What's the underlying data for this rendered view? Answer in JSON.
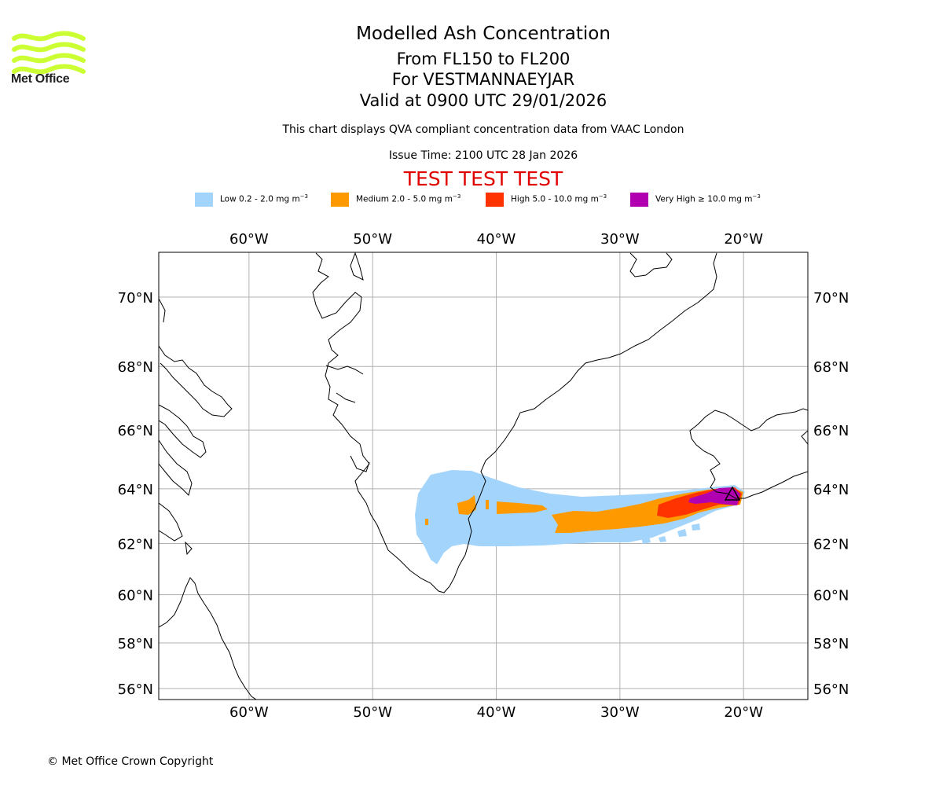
{
  "logo": {
    "text": "Met Office",
    "color": "#ccff33",
    "icon": "met-office-waves-logo"
  },
  "header": {
    "title": "Modelled Ash Concentration",
    "levels": "From FL150 to FL200",
    "volcano": "For VESTMANNAEYJAR",
    "valid": "Valid at 0900 UTC 29/01/2026",
    "compliance_note": "This chart displays QVA compliant concentration data from VAAC London",
    "issue_time": "Issue Time: 2100 UTC 28 Jan 2026",
    "test_banner": "TEST TEST TEST",
    "test_banner_color": "#e00000"
  },
  "legend": [
    {
      "label": "Low 0.2 - 2.0 mg m",
      "color": "#a3d4fb"
    },
    {
      "label": "Medium 2.0 - 5.0 mg m",
      "color": "#ff9900"
    },
    {
      "label": "High 5.0 - 10.0 mg m",
      "color": "#ff3300"
    },
    {
      "label": "Very High ≥ 10.0 mg m",
      "color": "#b000b0"
    }
  ],
  "legend_unit_exponent": "−3",
  "map": {
    "longitude_labels": [
      "60°W",
      "50°W",
      "40°W",
      "30°W",
      "20°W"
    ],
    "longitudes": [
      -60,
      -50,
      -40,
      -30,
      -20
    ],
    "latitude_labels": [
      "70°N",
      "68°N",
      "66°N",
      "64°N",
      "62°N",
      "60°N",
      "58°N",
      "56°N"
    ],
    "latitudes": [
      70,
      68,
      66,
      64,
      62,
      60,
      58,
      56
    ],
    "lon_range": [
      -67.3,
      -14.8
    ],
    "lat_range": [
      55.5,
      71.2
    ],
    "gridlines": true,
    "source_volcano": "Vestmannaeyjar",
    "source_marker_icon": "volcano-triangle-icon"
  },
  "footer": {
    "copyright": "© Met Office Crown Copyright"
  }
}
